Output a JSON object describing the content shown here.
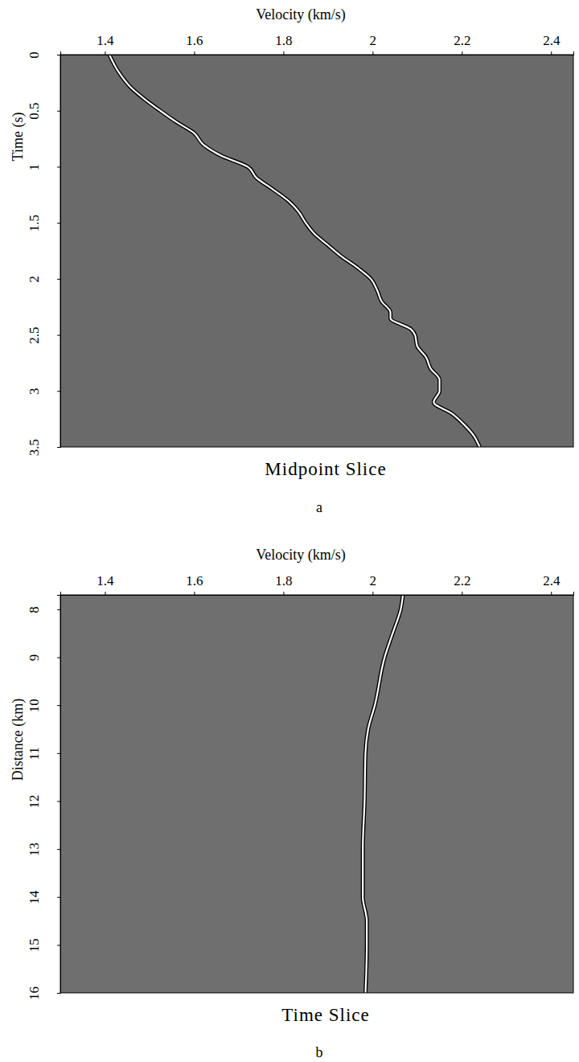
{
  "chart_data": [
    {
      "type": "line",
      "title": "Midpoint Slice",
      "panel_label": "a",
      "xlabel": "Velocity (km/s)",
      "ylabel": "Time (s)",
      "xlim": [
        1.3,
        2.45
      ],
      "xticks": [
        1.4,
        1.6,
        1.8,
        2,
        2.2,
        2.4
      ],
      "ylim": [
        0,
        3.5
      ],
      "yticks": [
        0,
        0.5,
        1,
        1.5,
        2,
        2.5,
        3,
        3.5
      ],
      "x": [
        1.41,
        1.43,
        1.46,
        1.49,
        1.524,
        1.56,
        1.6,
        1.62,
        1.66,
        1.72,
        1.74,
        1.776,
        1.81,
        1.834,
        1.85,
        1.87,
        1.9,
        1.93,
        1.966,
        1.996,
        2.01,
        2.02,
        2.04,
        2.04,
        2.086,
        2.095,
        2.1,
        2.12,
        2.13,
        2.15,
        2.15,
        2.137,
        2.177,
        2.205,
        2.227,
        2.24
      ],
      "series": [
        {
          "color": "#ffffff",
          "line_style": "double",
          "values": [
            0,
            0.15,
            0.3,
            0.4,
            0.5,
            0.6,
            0.7,
            0.8,
            0.9,
            1.0,
            1.1,
            1.2,
            1.3,
            1.4,
            1.5,
            1.6,
            1.7,
            1.8,
            1.9,
            2.0,
            2.1,
            2.2,
            2.3,
            2.35,
            2.45,
            2.5,
            2.6,
            2.7,
            2.8,
            2.9,
            3.0,
            3.1,
            3.2,
            3.3,
            3.4,
            3.5
          ]
        }
      ]
    },
    {
      "type": "line",
      "title": "Time Slice",
      "panel_label": "b",
      "xlabel": "Velocity (km/s)",
      "ylabel": "Distance (km)",
      "xlim": [
        1.3,
        2.45
      ],
      "xticks": [
        1.4,
        1.6,
        1.8,
        2,
        2.2,
        2.4
      ],
      "ylim": [
        7.7,
        16
      ],
      "yticks": [
        8,
        9,
        10,
        11,
        12,
        13,
        14,
        15,
        16
      ],
      "x": [
        2.068,
        2.063,
        2.045,
        2.027,
        2.005,
        1.99,
        1.984,
        1.982,
        1.978,
        1.978,
        1.987,
        1.987,
        1.984
      ],
      "series": [
        {
          "color": "#ffffff",
          "line_style": "double",
          "values": [
            7.7,
            8,
            8.5,
            9,
            10,
            10.5,
            11,
            12,
            13,
            14,
            14.5,
            15,
            16
          ]
        }
      ]
    }
  ]
}
